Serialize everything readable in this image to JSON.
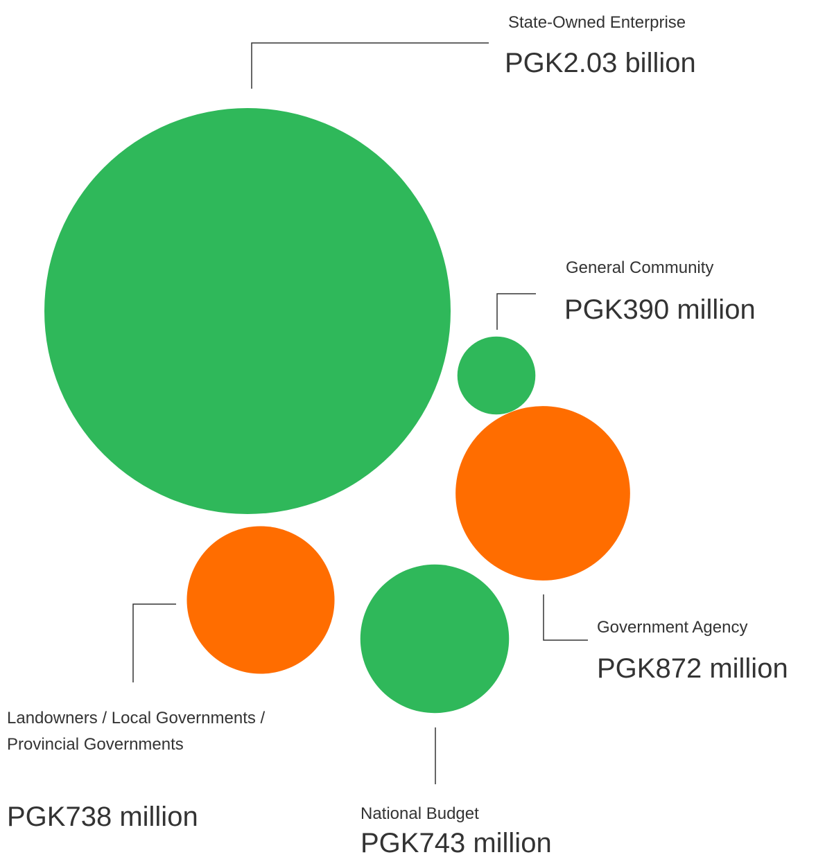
{
  "chart_data": {
    "type": "bubble",
    "categories": [
      "State-Owned Enterprise",
      "General Community",
      "Government Agency",
      "National Budget",
      "Landowners / Local Governments / Provincial Governments"
    ],
    "values": [
      2030,
      390,
      872,
      743,
      738
    ],
    "value_labels": [
      "PGK2.03 billion",
      "PGK390 million",
      "PGK872 million",
      "PGK743 million",
      "PGK738 million"
    ],
    "colors": [
      "#2fb85a",
      "#2fb85a",
      "#ff6d00",
      "#2fb85a",
      "#ff6d00"
    ]
  }
}
